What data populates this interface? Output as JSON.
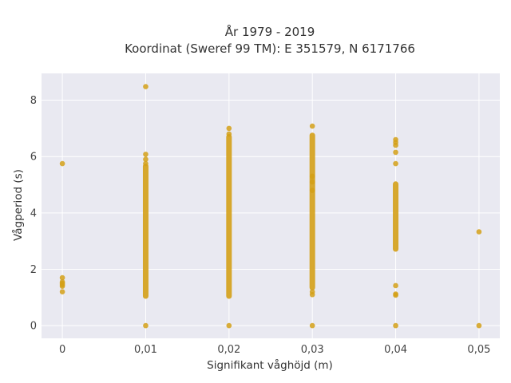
{
  "chart_data": {
    "type": "scatter",
    "title_lines": [
      "År 1979 - 2019",
      "Koordinat (Sweref 99 TM): E 351579, N 6171766"
    ],
    "xlabel": "Signifikant våghöjd (m)",
    "ylabel": "Vågperiod (s)",
    "x_ticks": [
      0,
      0.01,
      0.02,
      0.03,
      0.04,
      0.05
    ],
    "x_tick_labels": [
      "0",
      "0,01",
      "0,02",
      "0,03",
      "0,04",
      "0,05"
    ],
    "y_ticks": [
      0,
      2,
      4,
      6,
      8
    ],
    "y_tick_labels": [
      "0",
      "2",
      "4",
      "6",
      "8"
    ],
    "xlim": [
      -0.0025,
      0.0525
    ],
    "ylim": [
      -0.45,
      8.95
    ],
    "grid": true,
    "marker_color": "#d4a017",
    "background_color": "#e9e9f1",
    "series": [
      {
        "x_value": 0,
        "points": [
          5.75,
          1.7,
          1.55,
          1.5,
          1.45,
          1.4,
          1.2
        ],
        "bands": []
      },
      {
        "x_value": 0.01,
        "points": [
          8.48,
          6.08,
          5.9,
          5.75,
          0.0
        ],
        "bands": [
          [
            1.05,
            5.65
          ]
        ]
      },
      {
        "x_value": 0.02,
        "points": [
          7.0,
          6.8,
          0.0
        ],
        "bands": [
          [
            1.05,
            6.7
          ]
        ]
      },
      {
        "x_value": 0.03,
        "points": [
          7.08,
          5.3,
          5.1,
          4.8,
          1.2,
          1.1,
          0.0
        ],
        "bands": [
          [
            1.35,
            6.75
          ]
        ]
      },
      {
        "x_value": 0.04,
        "points": [
          6.6,
          6.5,
          6.4,
          6.15,
          5.75,
          1.42,
          1.12,
          1.08,
          0.0
        ],
        "bands": [
          [
            2.72,
            5.02
          ]
        ]
      },
      {
        "x_value": 0.05,
        "points": [
          3.33,
          0.0
        ],
        "bands": []
      }
    ]
  }
}
